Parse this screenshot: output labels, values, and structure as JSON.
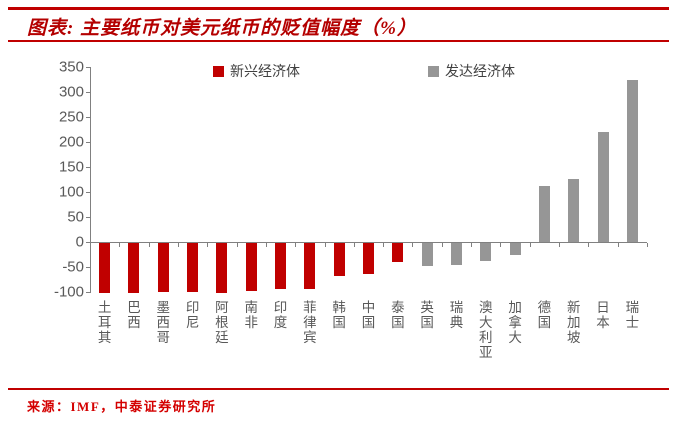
{
  "header": {
    "title": "图表: 主要纸币对美元纸币的贬值幅度（%）"
  },
  "footer": {
    "source": "来源：IMF，中泰证券研究所"
  },
  "colors": {
    "accent_red": "#c00000",
    "emerging_bar": "#c00000",
    "developed_bar": "#969696",
    "axis_gray": "#808080",
    "tick_text": "#595959"
  },
  "chart_data": {
    "type": "bar",
    "title": "主要纸币对美元纸币的贬值幅度（%）",
    "xlabel": "",
    "ylabel": "",
    "ylim": [
      -100,
      350
    ],
    "ytick_step": 50,
    "yticks": [
      350,
      300,
      250,
      200,
      150,
      100,
      50,
      0,
      -50,
      -100
    ],
    "grid": false,
    "legend_position": "top",
    "legend": [
      {
        "label": "新兴经济体",
        "group": "emerging",
        "color": "#c00000"
      },
      {
        "label": "发达经济体",
        "group": "developed",
        "color": "#969696"
      }
    ],
    "categories": [
      "土耳其",
      "巴西",
      "墨西哥",
      "印尼",
      "阿根廷",
      "南非",
      "印度",
      "菲律宾",
      "韩国",
      "中国",
      "泰国",
      "英国",
      "瑞典",
      "澳大利亚",
      "加拿大",
      "德国",
      "新加坡",
      "日本",
      "瑞士"
    ],
    "groups": [
      "emerging",
      "emerging",
      "emerging",
      "emerging",
      "emerging",
      "emerging",
      "emerging",
      "emerging",
      "emerging",
      "emerging",
      "emerging",
      "developed",
      "developed",
      "developed",
      "developed",
      "developed",
      "developed",
      "developed",
      "developed"
    ],
    "values": [
      -100,
      -99,
      -97,
      -97,
      -99,
      -95,
      -92,
      -92,
      -66,
      -61,
      -38,
      -45,
      -43,
      -35,
      -23,
      112,
      127,
      220,
      325
    ]
  }
}
